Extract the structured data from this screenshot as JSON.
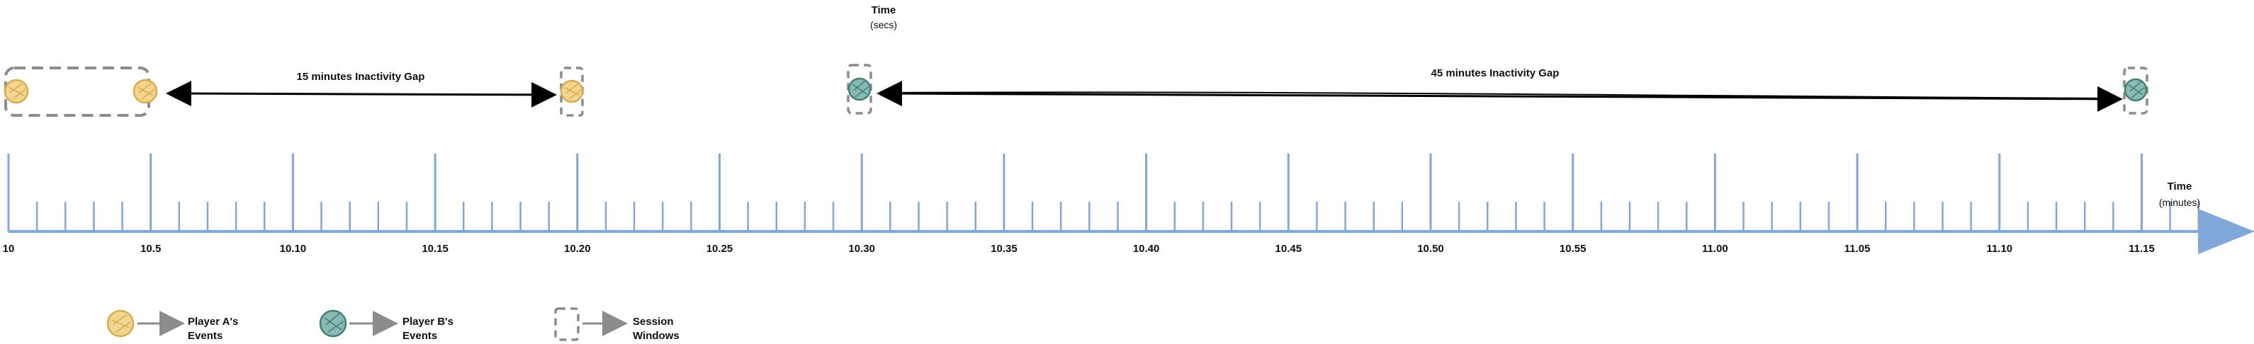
{
  "time_title": {
    "main": "Time",
    "unit": "(secs)"
  },
  "axis": {
    "title": "Time",
    "unit": "(minutes)",
    "ticks": [
      "10",
      "10.5",
      "10.10",
      "10.15",
      "10.20",
      "10.25",
      "10.30",
      "10.35",
      "10.40",
      "10.45",
      "10.50",
      "10.55",
      "11.00",
      "11.05",
      "11.10",
      "11.15"
    ]
  },
  "gaps": [
    {
      "label": "15 minutes Inactivity Gap"
    },
    {
      "label": "45 minutes Inactivity Gap"
    }
  ],
  "legend": [
    {
      "icon": "player-a-event-icon",
      "line1": "Player A's",
      "line2": "Events"
    },
    {
      "icon": "player-b-event-icon",
      "line1": "Player B's",
      "line2": "Events"
    },
    {
      "icon": "session-window-icon",
      "line1": "Session",
      "line2": "Windows"
    }
  ],
  "colors": {
    "player_a": "#f2d58f",
    "player_a_stroke": "#d9ab4d",
    "player_b": "#89b9b0",
    "player_b_stroke": "#3f8075",
    "axis": "#7fa7d8",
    "session_window": "#8c8c8c"
  }
}
